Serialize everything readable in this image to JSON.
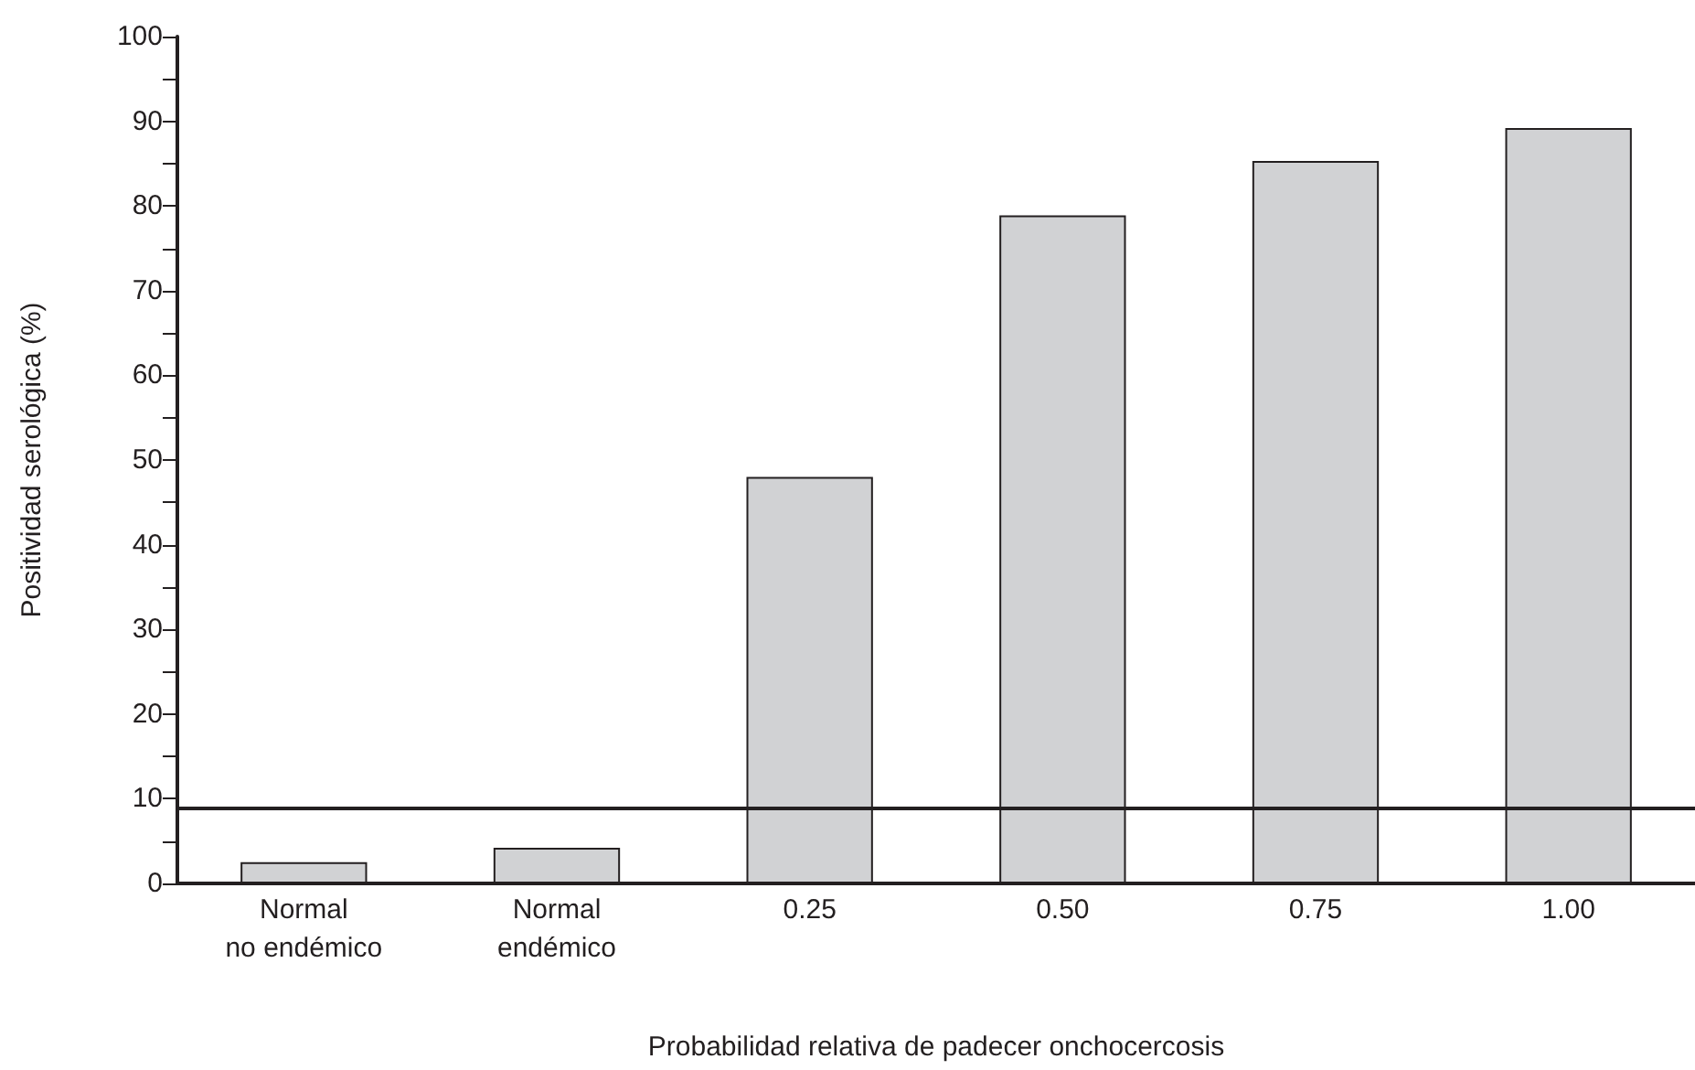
{
  "chart_data": {
    "type": "bar",
    "xlabel": "Probabilidad relativa de padecer onchocercosis",
    "ylabel": "Positividad serológica (%)",
    "categories": [
      "Normal\nno endémico",
      "Normal\nendémico",
      "0.25",
      "0.50",
      "0.75",
      "1.00"
    ],
    "values": [
      2.5,
      4.2,
      48,
      78.9,
      85.3,
      89.2
    ],
    "color": "#d1d2d4",
    "ylim": [
      0,
      100
    ],
    "yticks": [
      0,
      {
        "value": 5,
        "label": null
      },
      10,
      {
        "value": 15,
        "label": null
      },
      20,
      {
        "value": 25,
        "label": null
      },
      30,
      {
        "value": 35,
        "label": null
      },
      40,
      {
        "value": 45,
        "label": null
      },
      50,
      {
        "value": 55,
        "label": null
      },
      60,
      {
        "value": 65,
        "label": null
      },
      70,
      {
        "value": 75,
        "label": null
      },
      80,
      {
        "value": 85,
        "label": null
      },
      90,
      {
        "value": 95,
        "label": null
      },
      100
    ],
    "ref_lines": [
      {
        "axis": "y",
        "value": 9,
        "color": "#231f20",
        "line_style": "solid"
      }
    ],
    "grid": false
  }
}
